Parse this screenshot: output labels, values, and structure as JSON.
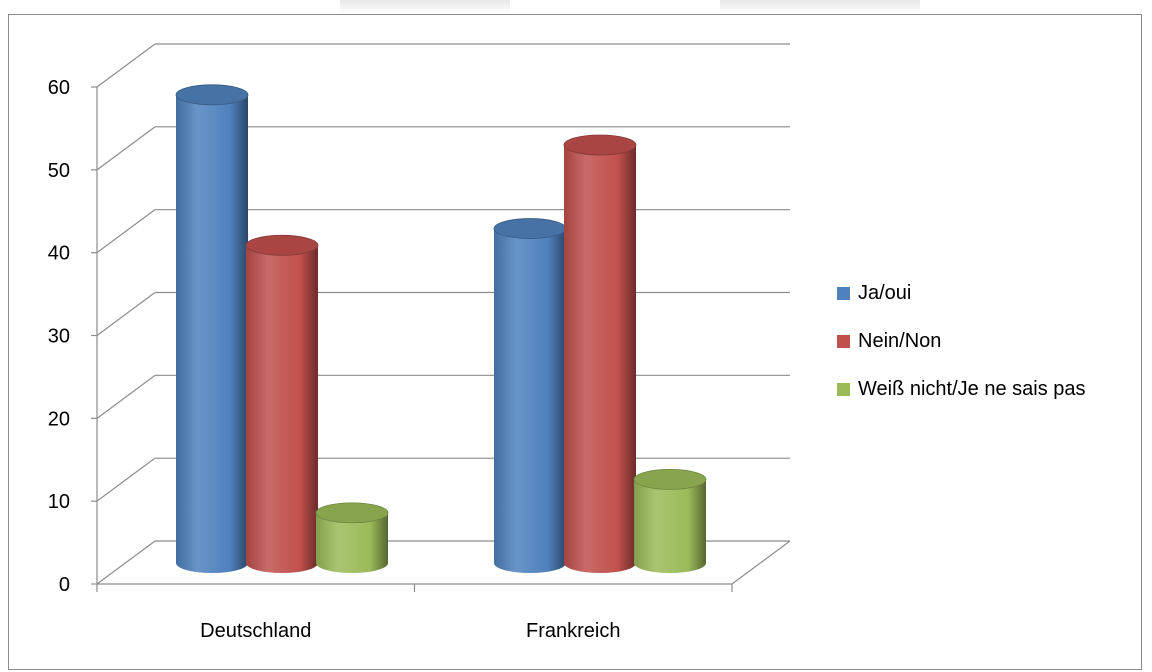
{
  "chart_data": {
    "type": "bar",
    "categories": [
      "Deutschland",
      "Frankreich"
    ],
    "series": [
      {
        "name": "Ja/oui",
        "values": [
          56,
          40
        ],
        "color": "#4f81bd"
      },
      {
        "name": "Nein/Non",
        "values": [
          38,
          50
        ],
        "color": "#c0504d"
      },
      {
        "name": "Weiß nicht/Je ne sais pas",
        "values": [
          6,
          10
        ],
        "color": "#9bbb59"
      }
    ],
    "ylim": [
      0,
      60
    ],
    "yticks": [
      0,
      10,
      20,
      30,
      40,
      50,
      60
    ],
    "grid": true,
    "legend_position": "right",
    "style": "3d-cylinder"
  }
}
